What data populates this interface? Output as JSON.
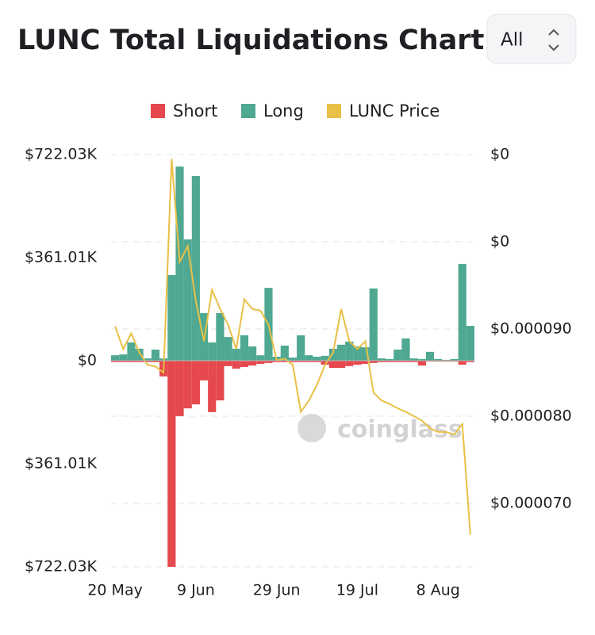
{
  "header": {
    "title": "LUNC Total Liquidations Chart",
    "range_select": "All"
  },
  "chart_data": {
    "type": "bar",
    "watermark": "coinglass",
    "categories": [
      "20 May",
      null,
      null,
      null,
      null,
      null,
      null,
      null,
      null,
      null,
      "9 Jun",
      null,
      null,
      null,
      null,
      null,
      null,
      null,
      null,
      null,
      "29 Jun",
      null,
      null,
      null,
      null,
      null,
      null,
      null,
      null,
      null,
      "19 Jul",
      null,
      null,
      null,
      null,
      null,
      null,
      null,
      null,
      null,
      "8 Aug",
      null,
      null,
      null,
      null
    ],
    "series": [
      {
        "name": "Short",
        "color": "#e5484d",
        "values": [
          -5000,
          -5000,
          -5000,
          -5000,
          -5000,
          -5000,
          -55000,
          -722030,
          -194000,
          -167000,
          -153000,
          -69000,
          -180000,
          -139000,
          -19000,
          -28000,
          -22000,
          -17000,
          -11000,
          -8000,
          -5000,
          -5000,
          -5000,
          -5000,
          -5000,
          -5000,
          -14000,
          -25000,
          -25000,
          -19000,
          -14000,
          -11000,
          -8000,
          -5000,
          -5000,
          -5000,
          -5000,
          -5000,
          -17000,
          -3000,
          -3000,
          -3000,
          -3000,
          -14000,
          -5000
        ]
      },
      {
        "name": "Long",
        "color": "#4fa891",
        "values": [
          19000,
          22000,
          64000,
          42000,
          8000,
          39000,
          8000,
          300000,
          680000,
          425000,
          647000,
          167000,
          64000,
          167000,
          83000,
          42000,
          89000,
          50000,
          19000,
          255000,
          14000,
          53000,
          11000,
          89000,
          19000,
          14000,
          17000,
          42000,
          56000,
          67000,
          50000,
          47000,
          253000,
          8000,
          6000,
          39000,
          78000,
          8000,
          6000,
          31000,
          6000,
          3000,
          6000,
          339000,
          122000
        ]
      },
      {
        "name": "LUNC Price",
        "color": "#e9c046",
        "type": "line",
        "axis": "y2",
        "values": [
          9.03e-05,
          8.77e-05,
          8.95e-05,
          8.73e-05,
          8.59e-05,
          8.57e-05,
          8.5e-05,
          0.0001095,
          9.77e-05,
          9.95e-05,
          9.32e-05,
          8.86e-05,
          9.45e-05,
          9.23e-05,
          9.05e-05,
          8.77e-05,
          9.34e-05,
          9.23e-05,
          9.21e-05,
          9.05e-05,
          8.64e-05,
          8.66e-05,
          8.59e-05,
          8.05e-05,
          8.18e-05,
          8.36e-05,
          8.59e-05,
          8.73e-05,
          9.23e-05,
          8.86e-05,
          8.77e-05,
          8.86e-05,
          8.27e-05,
          8.18e-05,
          8.14e-05,
          8.09e-05,
          8.05e-05,
          8e-05,
          7.95e-05,
          7.86e-05,
          7.82e-05,
          7.82e-05,
          7.79e-05,
          7.91e-05,
          6.64e-05
        ]
      }
    ],
    "ylim": [
      -722030,
      722030
    ],
    "yticks": [
      {
        "value": 722030,
        "label": "$722.03K"
      },
      {
        "value": 361010,
        "label": "$361.01K"
      },
      {
        "value": 0,
        "label": "$0"
      },
      {
        "value": -361010,
        "label": "$361.01K"
      },
      {
        "value": -722030,
        "label": "$722.03K"
      }
    ],
    "y2lim": [
      6.273e-05,
      0.00011
    ],
    "y2ticks": [
      {
        "value": 0.00011,
        "label": "$0"
      },
      {
        "value": 0.0001,
        "label": "$0"
      },
      {
        "value": 9e-05,
        "label": "$0.000090"
      },
      {
        "value": 8e-05,
        "label": "$0.000080"
      },
      {
        "value": 7e-05,
        "label": "$0.000070"
      }
    ],
    "grid": true,
    "legend": "top"
  }
}
